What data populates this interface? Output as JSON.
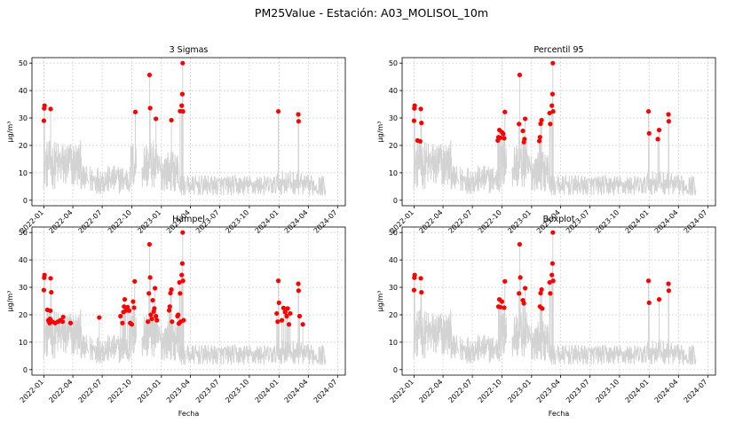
{
  "figure": {
    "title": "PM25Value - Estación: A03_MOLISOL_10m"
  },
  "colors": {
    "series": "#d3d3d3",
    "outliers": "#ff0000",
    "grid": "#cccccc"
  },
  "chart_data": [
    {
      "type": "line",
      "title": "3 Sigmas",
      "xlabel": "",
      "ylabel": "µg/m³",
      "x_ticks": [
        "2022-01",
        "2022-04",
        "2022-07",
        "2022-10",
        "2023-01",
        "2023-04",
        "2023-07",
        "2023-10",
        "2024-01",
        "2024-04",
        "2024-07"
      ],
      "y_ticks": [
        0,
        10,
        20,
        30,
        40,
        50
      ],
      "ylim": [
        -2,
        52
      ],
      "grid": true,
      "series": [
        {
          "name": "",
          "color": "#d3d3d3",
          "x": [],
          "y": []
        }
      ],
      "outliers": {
        "x": [
          "2022-01-01",
          "2022-01-02",
          "2022-01-03",
          "2022-01-22",
          "2022-10-12",
          "2022-11-25",
          "2022-11-27",
          "2022-12-15",
          "2023-02-01",
          "2023-02-28",
          "2023-03-05",
          "2023-03-07",
          "2023-03-08",
          "2023-03-09",
          "2023-12-30",
          "2024-03-01",
          "2024-03-02"
        ],
        "y": [
          29,
          33.5,
          34.5,
          33.3,
          32.2,
          45.7,
          33.6,
          29.7,
          29.2,
          32.5,
          34.5,
          38.7,
          50,
          32.4,
          32.4,
          31.3,
          28.8
        ]
      }
    },
    {
      "type": "line",
      "title": "Percentil 95",
      "xlabel": "",
      "ylabel": "µg/m³",
      "x_ticks": [
        "2022-01",
        "2022-04",
        "2022-07",
        "2022-10",
        "2023-01",
        "2023-04",
        "2023-07",
        "2023-10",
        "2024-01",
        "2024-04",
        "2024-07"
      ],
      "y_ticks": [
        0,
        10,
        20,
        30,
        40,
        50
      ],
      "ylim": [
        -2,
        52
      ],
      "grid": true,
      "series": [
        {
          "name": "",
          "color": "#d3d3d3",
          "x": [],
          "y": []
        }
      ],
      "outliers": {
        "x": [
          "2022-01-01",
          "2022-01-02",
          "2022-01-03",
          "2022-01-12",
          "2022-01-20",
          "2022-01-22",
          "2022-01-24",
          "2022-09-18",
          "2022-09-20",
          "2022-09-23",
          "2022-09-26",
          "2022-10-01",
          "2022-10-05",
          "2022-10-08",
          "2022-10-10",
          "2022-11-23",
          "2022-11-25",
          "2022-12-05",
          "2022-12-08",
          "2022-12-10",
          "2022-12-12",
          "2023-01-25",
          "2023-01-27",
          "2023-01-29",
          "2023-02-01",
          "2023-02-26",
          "2023-02-28",
          "2023-03-05",
          "2023-03-07",
          "2023-03-08",
          "2023-03-09",
          "2023-12-30",
          "2024-01-01",
          "2024-01-28",
          "2024-02-01",
          "2024-03-01",
          "2024-03-02"
        ],
        "y": [
          29,
          33.5,
          34.5,
          21.8,
          21.5,
          33.3,
          28.2,
          21.8,
          23,
          25.6,
          22.8,
          24.8,
          24.2,
          22.6,
          32.2,
          27.8,
          45.7,
          25.3,
          21.2,
          22.3,
          29.7,
          21.6,
          23,
          27.9,
          29.2,
          31.8,
          27.8,
          34.5,
          38.7,
          50,
          32.4,
          32.4,
          24.4,
          22.3,
          25.6,
          31.3,
          28.8
        ]
      }
    },
    {
      "type": "line",
      "title": "Hampel",
      "xlabel": "Fecha",
      "ylabel": "µg/m³",
      "x_ticks": [
        "2022-01",
        "2022-04",
        "2022-07",
        "2022-10",
        "2023-01",
        "2023-04",
        "2023-07",
        "2023-10",
        "2024-01",
        "2024-04",
        "2024-07"
      ],
      "y_ticks": [
        0,
        10,
        20,
        30,
        40,
        50
      ],
      "ylim": [
        -2,
        52
      ],
      "grid": true,
      "series": [
        {
          "name": "",
          "color": "#d3d3d3",
          "x": [],
          "y": []
        }
      ],
      "outliers": {
        "x": [
          "2022-01-01",
          "2022-01-02",
          "2022-01-03",
          "2022-01-12",
          "2022-01-15",
          "2022-01-17",
          "2022-01-19",
          "2022-01-20",
          "2022-01-21",
          "2022-01-22",
          "2022-01-24",
          "2022-01-27",
          "2022-02-05",
          "2022-02-14",
          "2022-02-21",
          "2022-02-28",
          "2022-03-02",
          "2022-03-25",
          "2022-06-22",
          "2022-08-27",
          "2022-09-02",
          "2022-09-05",
          "2022-09-07",
          "2022-09-09",
          "2022-09-12",
          "2022-09-18",
          "2022-09-23",
          "2022-09-26",
          "2022-10-01",
          "2022-10-05",
          "2022-10-08",
          "2022-10-10",
          "2022-11-20",
          "2022-11-23",
          "2022-11-25",
          "2022-11-27",
          "2022-11-29",
          "2022-12-02",
          "2022-12-05",
          "2022-12-08",
          "2022-12-10",
          "2022-12-12",
          "2022-12-15",
          "2022-12-18",
          "2023-01-25",
          "2023-01-27",
          "2023-01-29",
          "2023-02-01",
          "2023-02-03",
          "2023-02-20",
          "2023-02-22",
          "2023-02-24",
          "2023-02-26",
          "2023-02-28",
          "2023-03-02",
          "2023-03-05",
          "2023-03-07",
          "2023-03-08",
          "2023-03-09",
          "2023-03-11",
          "2023-12-25",
          "2023-12-28",
          "2023-12-30",
          "2024-01-01",
          "2024-01-10",
          "2024-01-15",
          "2024-01-20",
          "2024-01-25",
          "2024-01-28",
          "2024-02-01",
          "2024-02-05",
          "2024-03-01",
          "2024-03-02",
          "2024-03-05",
          "2024-03-15"
        ],
        "y": [
          29,
          33.5,
          34.5,
          21.8,
          18,
          17.5,
          17,
          18.5,
          21.5,
          33.3,
          28.2,
          17.5,
          17,
          17.5,
          18,
          17.5,
          19.2,
          17,
          19,
          19.5,
          17,
          21,
          23,
          25.6,
          21.5,
          22.8,
          21.5,
          17,
          16.5,
          24.8,
          22.6,
          32.2,
          17.5,
          27.8,
          45.7,
          33.6,
          20,
          18.5,
          25.3,
          21.2,
          22.3,
          29.7,
          19.5,
          18,
          21.6,
          23,
          27.9,
          29.2,
          17.5,
          19.5,
          20,
          16.8,
          31.8,
          27.8,
          17.5,
          34.5,
          38.7,
          50,
          32.4,
          18,
          20.5,
          17.5,
          32.4,
          24.4,
          18,
          22.5,
          21,
          19.5,
          22.3,
          16.5,
          20.5,
          31.3,
          28.8,
          19.5,
          16.5
        ]
      }
    },
    {
      "type": "line",
      "title": "Boxplot",
      "xlabel": "Fecha",
      "ylabel": "µg/m³",
      "x_ticks": [
        "2022-01",
        "2022-04",
        "2022-07",
        "2022-10",
        "2023-01",
        "2023-04",
        "2023-07",
        "2023-10",
        "2024-01",
        "2024-04",
        "2024-07"
      ],
      "y_ticks": [
        0,
        10,
        20,
        30,
        40,
        50
      ],
      "ylim": [
        -2,
        52
      ],
      "grid": true,
      "series": [
        {
          "name": "",
          "color": "#d3d3d3",
          "x": [],
          "y": []
        }
      ],
      "outliers": {
        "x": [
          "2022-01-01",
          "2022-01-02",
          "2022-01-03",
          "2022-01-22",
          "2022-01-24",
          "2022-09-20",
          "2022-09-23",
          "2022-09-26",
          "2022-10-01",
          "2022-10-08",
          "2022-10-10",
          "2022-11-23",
          "2022-11-25",
          "2022-11-27",
          "2022-12-05",
          "2022-12-08",
          "2022-12-12",
          "2023-01-27",
          "2023-01-29",
          "2023-02-01",
          "2023-02-03",
          "2023-02-26",
          "2023-02-28",
          "2023-03-05",
          "2023-03-07",
          "2023-03-08",
          "2023-03-09",
          "2023-12-30",
          "2024-01-01",
          "2024-02-01",
          "2024-03-01",
          "2024-03-02"
        ],
        "y": [
          29,
          33.5,
          34.5,
          33.3,
          28.2,
          23,
          25.6,
          22.8,
          24.8,
          22.6,
          32.2,
          27.8,
          45.7,
          33.6,
          25.3,
          24.2,
          29.7,
          23,
          27.9,
          29.2,
          22.3,
          31.8,
          27.8,
          34.5,
          38.7,
          50,
          32.4,
          32.4,
          24.4,
          25.6,
          31.3,
          28.8
        ]
      }
    }
  ]
}
